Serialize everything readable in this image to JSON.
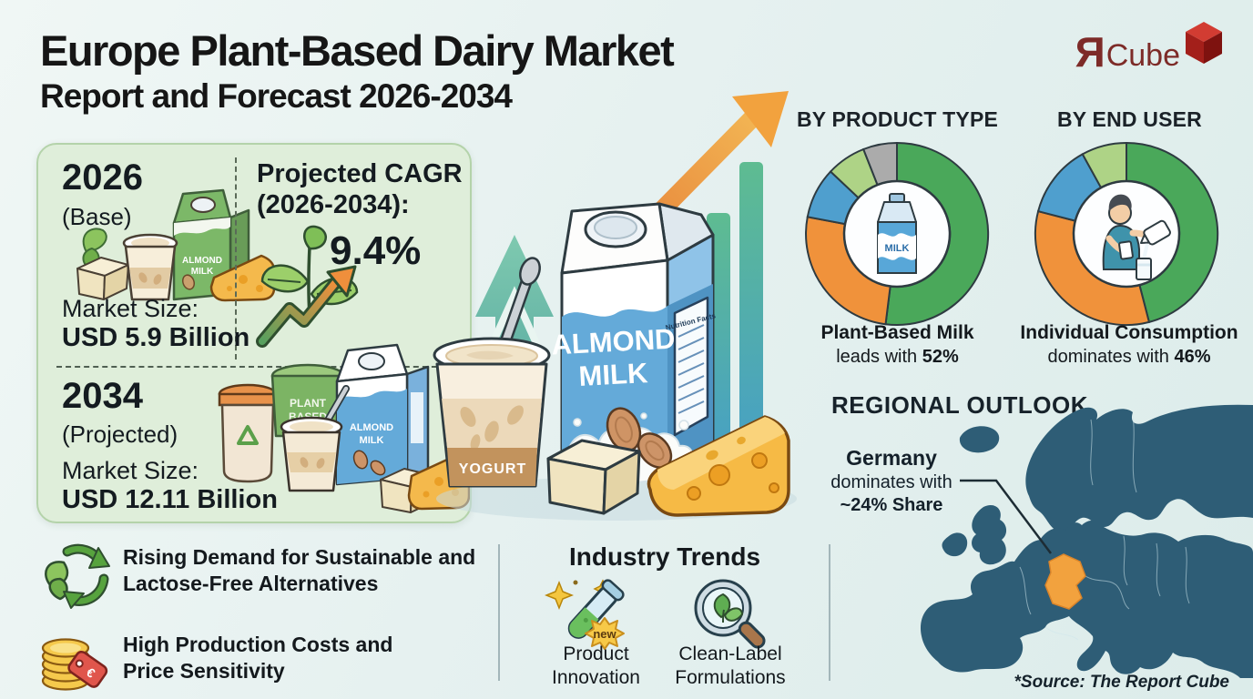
{
  "header": {
    "title_line1": "Europe Plant-Based Dairy Market",
    "title_line2": "Report and Forecast 2026-2034"
  },
  "logo": {
    "mark": "Я",
    "text": "Cube"
  },
  "market_box": {
    "base_year": "2026",
    "base_label": "(Base)",
    "base_market_size_label": "Market Size:",
    "base_market_size_value": "USD 5.9 Billion",
    "cagr_label_line1": "Projected CAGR",
    "cagr_label_line2": "(2026-2034):",
    "cagr_value": "9.4%",
    "projected_year": "2034",
    "projected_label": "(Projected)",
    "projected_market_size_label": "Market Size:",
    "projected_market_size_value": "USD 12.11 Billion"
  },
  "center_illustration": {
    "carton_line1": "ALMOND",
    "carton_line2": "MILK",
    "yogurt_label": "YOGURT",
    "nutrition_label": "Nutrition Facts",
    "mini_2026_carton_line1": "ALMOND",
    "mini_2026_carton_line2": "MILK",
    "mini_2034_tub_line1": "PLANT",
    "mini_2034_tub_line2": "BASED",
    "mini_2034_carton_line1": "ALMOND",
    "mini_2034_carton_line2": "MILK"
  },
  "captions": {
    "product_type": {
      "line1": "Plant-Based Milk",
      "line2_text": "leads with ",
      "line2_value": "52%"
    },
    "end_user": {
      "line1": "Individual Consumption",
      "line2_text": "dominates with ",
      "line2_value": "46%"
    }
  },
  "donut_icons": {
    "milk_label": "MILK"
  },
  "regional": {
    "heading": "REGIONAL OUTLOOK",
    "country": "Germany",
    "line2": "dominates with",
    "line3": "~24% Share"
  },
  "drivers": [
    {
      "icon": "recycle-leaves-icon",
      "text": "Rising Demand for Sustainable and Lactose-Free Alternatives"
    },
    {
      "icon": "coins-price-tag-icon",
      "text": "High Production Costs and Price Sensitivity"
    }
  ],
  "trends": {
    "heading": "Industry Trends",
    "badge_label": "new",
    "items": [
      {
        "icon": "test-tube-new-icon",
        "label": "Product Innovation"
      },
      {
        "icon": "magnifier-leaf-icon",
        "label": "Clean-Label Formulations"
      }
    ]
  },
  "price_tag_symbol": "€",
  "source_note": "*Source: The Report Cube",
  "colors": {
    "background": "#e9f3f1",
    "panel_green": "#dfeeda",
    "panel_border": "#b4d3aa",
    "map_teal": "#2e5d76",
    "germany_orange": "#f2a23e",
    "logo_red": "#7d2b28",
    "pie_green": "#4aa85a",
    "pie_orange": "#f0923b",
    "pie_blue": "#4f9fce",
    "pie_light_green": "#aed386",
    "pie_gray": "#ababab"
  },
  "chart_data": [
    {
      "type": "pie",
      "subtype": "donut",
      "title": "BY PRODUCT TYPE",
      "values": [
        52,
        26,
        9,
        7,
        6
      ],
      "colors": [
        "#4aa85a",
        "#f0923b",
        "#4f9fce",
        "#aed386",
        "#ababab"
      ],
      "labels": [
        "Plant-Based Milk",
        null,
        null,
        null,
        null
      ],
      "annotation": "Plant-Based Milk leads with 52%",
      "legend": "none"
    },
    {
      "type": "pie",
      "subtype": "donut",
      "title": "BY END USER",
      "values": [
        46,
        33,
        13,
        8
      ],
      "colors": [
        "#4aa85a",
        "#f0923b",
        "#4f9fce",
        "#aed386"
      ],
      "labels": [
        "Individual Consumption",
        null,
        null,
        null
      ],
      "annotation": "Individual Consumption dominates with 46%",
      "legend": "none"
    },
    {
      "type": "map",
      "title": "REGIONAL OUTLOOK",
      "region": "Europe",
      "highlight_country": "Germany",
      "highlight_share": "~24%",
      "annotation": "Germany dominates with ~24% Share"
    }
  ]
}
